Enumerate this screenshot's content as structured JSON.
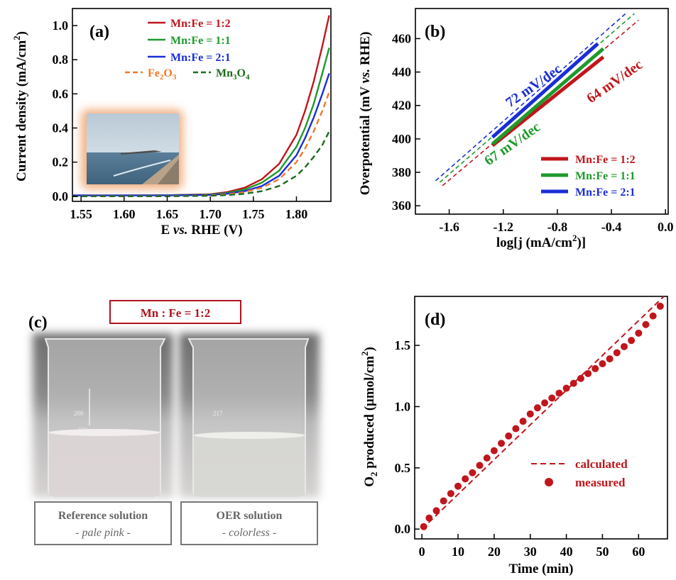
{
  "colors": {
    "mnfe12": "#c0161c",
    "mnfe11": "#1e9a2c",
    "mnfe21": "#1a2ed6",
    "fe2o3": "#f07a2a",
    "mn3o4": "#1c6b1c",
    "panel_c_label_border": "#b0141c"
  },
  "panels": {
    "a": {
      "label": "(a)"
    },
    "b": {
      "label": "(b)"
    },
    "c": {
      "label": "(c)",
      "banner": "Mn : Fe = 1:2"
    },
    "d": {
      "label": "(d)"
    }
  },
  "photo_c": {
    "left_caption_line1": "Reference solution",
    "left_caption_line2": "- pale pink -",
    "right_caption_line1": "OER solution",
    "right_caption_line2": "- colorless -",
    "left_marks": [
      "200",
      "150"
    ],
    "right_marks": [
      "217"
    ]
  },
  "inset_a": {
    "icon": "coastline-photo-icon"
  },
  "chart_data": [
    {
      "panel": "a",
      "type": "line",
      "xlabel_pre": "E ",
      "xlabel_it": "vs.",
      "xlabel_post": " RHE (V)",
      "ylabel": "Current density (mA/cm",
      "ylabel_sup": "2",
      "ylabel_end": ")",
      "xlim": [
        1.54,
        1.84
      ],
      "ylim": [
        -0.03,
        1.1
      ],
      "xticks": [
        "1.55",
        "1.60",
        "1.65",
        "1.70",
        "1.75",
        "1.80"
      ],
      "xtick_vals": [
        1.55,
        1.6,
        1.65,
        1.7,
        1.75,
        1.8
      ],
      "yticks": [
        "0.0",
        "0.2",
        "0.4",
        "0.6",
        "0.8",
        "1.0"
      ],
      "ytick_vals": [
        0,
        0.2,
        0.4,
        0.6,
        0.8,
        1.0
      ],
      "series": [
        {
          "name": "Mn:Fe = 1:2",
          "style": "solid",
          "color_key": "mnfe12",
          "x": [
            1.54,
            1.6,
            1.65,
            1.7,
            1.72,
            1.74,
            1.76,
            1.78,
            1.8,
            1.81,
            1.82,
            1.83,
            1.838
          ],
          "y": [
            0.005,
            0.005,
            0.006,
            0.012,
            0.025,
            0.05,
            0.1,
            0.19,
            0.36,
            0.5,
            0.67,
            0.88,
            1.06
          ]
        },
        {
          "name": "Mn:Fe = 1:1",
          "style": "solid",
          "color_key": "mnfe11",
          "x": [
            1.54,
            1.6,
            1.65,
            1.7,
            1.72,
            1.74,
            1.76,
            1.78,
            1.8,
            1.81,
            1.82,
            1.83,
            1.838
          ],
          "y": [
            0.005,
            0.005,
            0.006,
            0.01,
            0.02,
            0.04,
            0.08,
            0.15,
            0.29,
            0.4,
            0.54,
            0.72,
            0.87
          ]
        },
        {
          "name": "Mn:Fe = 2:1",
          "style": "solid",
          "color_key": "mnfe21",
          "x": [
            1.54,
            1.6,
            1.65,
            1.7,
            1.72,
            1.74,
            1.76,
            1.78,
            1.8,
            1.81,
            1.82,
            1.83,
            1.838
          ],
          "y": [
            0.005,
            0.005,
            0.005,
            0.008,
            0.015,
            0.03,
            0.06,
            0.12,
            0.24,
            0.34,
            0.46,
            0.6,
            0.72
          ]
        },
        {
          "name_pre": "Fe",
          "name_sub": "2",
          "name_mid": "O",
          "name_sub2": "3",
          "style": "dashed",
          "color_key": "fe2o3",
          "x": [
            1.54,
            1.6,
            1.65,
            1.7,
            1.72,
            1.74,
            1.76,
            1.78,
            1.8,
            1.81,
            1.82,
            1.83,
            1.838
          ],
          "y": [
            0.0,
            0.0,
            0.0,
            0.005,
            0.012,
            0.025,
            0.05,
            0.1,
            0.2,
            0.28,
            0.38,
            0.5,
            0.61
          ]
        },
        {
          "name_pre": "Mn",
          "name_sub": "3",
          "name_mid": "O",
          "name_sub2": "4",
          "style": "dashed",
          "color_key": "mn3o4",
          "x": [
            1.54,
            1.6,
            1.65,
            1.7,
            1.72,
            1.74,
            1.76,
            1.78,
            1.8,
            1.81,
            1.82,
            1.83,
            1.838
          ],
          "y": [
            0.0,
            0.0,
            0.0,
            0.003,
            0.007,
            0.015,
            0.03,
            0.06,
            0.12,
            0.17,
            0.23,
            0.3,
            0.38
          ]
        }
      ]
    },
    {
      "panel": "b",
      "type": "line",
      "xlabel": "log[j (mA/cm",
      "xlabel_sup": "2",
      "xlabel_end": ")]",
      "ylabel_pre": "Overpotential (mV ",
      "ylabel_it": "vs.",
      "ylabel_post": " RHE)",
      "xlim": [
        -1.85,
        0.02
      ],
      "ylim": [
        355,
        478
      ],
      "xticks": [
        "-1.6",
        "-1.2",
        "-0.8",
        "-0.4",
        "0.0"
      ],
      "xtick_vals": [
        -1.6,
        -1.2,
        -0.8,
        -0.4,
        0.0
      ],
      "yticks": [
        "360",
        "380",
        "400",
        "420",
        "440",
        "460"
      ],
      "ytick_vals": [
        360,
        380,
        400,
        420,
        440,
        460
      ],
      "series": [
        {
          "name": "Mn:Fe = 1:2",
          "color_key": "mnfe12",
          "fit_x": [
            -1.28,
            -0.46
          ],
          "fit_y": [
            396,
            449
          ],
          "ext_x": [
            -1.65,
            -0.2
          ],
          "ext_y": [
            372,
            471
          ],
          "slope_label": "64 mV/dec"
        },
        {
          "name": "Mn:Fe = 1:1",
          "color_key": "mnfe11",
          "fit_x": [
            -1.28,
            -0.46
          ],
          "fit_y": [
            397,
            454
          ],
          "ext_x": [
            -1.67,
            -0.23
          ],
          "ext_y": [
            374,
            475
          ],
          "slope_label": "67 mV/dec"
        },
        {
          "name": "Mn:Fe = 2:1",
          "color_key": "mnfe21",
          "fit_x": [
            -1.28,
            -0.5
          ],
          "fit_y": [
            401,
            457
          ],
          "ext_x": [
            -1.7,
            -0.28
          ],
          "ext_y": [
            375,
            476
          ],
          "slope_label": "72 mV/dec"
        }
      ]
    },
    {
      "panel": "d",
      "type": "scatter",
      "xlabel": "Time (min)",
      "ylabel_pre": "O",
      "ylabel_sub": "2",
      "ylabel_mid": " produced (μmol/cm",
      "ylabel_sup": "2",
      "ylabel_end": ")",
      "xlim": [
        -2,
        68
      ],
      "ylim": [
        -0.08,
        1.9
      ],
      "xticks": [
        "0",
        "10",
        "20",
        "30",
        "40",
        "50",
        "60"
      ],
      "xtick_vals": [
        0,
        10,
        20,
        30,
        40,
        50,
        60
      ],
      "yticks": [
        "0.0",
        "0.5",
        "1.0",
        "1.5"
      ],
      "ytick_vals": [
        0,
        0.5,
        1.0,
        1.5
      ],
      "calculated": {
        "name": "calculated",
        "x": [
          0,
          67
        ],
        "y": [
          0.0,
          1.9
        ]
      },
      "measured": {
        "name": "measured",
        "x": [
          0.5,
          2,
          4,
          6,
          8,
          10,
          12,
          14,
          16,
          18,
          20,
          22,
          24,
          26,
          28,
          30,
          32,
          34,
          36,
          38,
          40,
          42,
          44,
          46,
          48,
          50,
          52,
          54,
          56,
          58,
          60,
          62,
          64,
          66
        ],
        "y": [
          0.02,
          0.09,
          0.15,
          0.23,
          0.29,
          0.35,
          0.41,
          0.46,
          0.52,
          0.58,
          0.64,
          0.7,
          0.76,
          0.82,
          0.88,
          0.94,
          0.99,
          1.03,
          1.07,
          1.11,
          1.15,
          1.19,
          1.23,
          1.27,
          1.31,
          1.35,
          1.39,
          1.44,
          1.49,
          1.54,
          1.6,
          1.67,
          1.74,
          1.82
        ]
      }
    }
  ]
}
